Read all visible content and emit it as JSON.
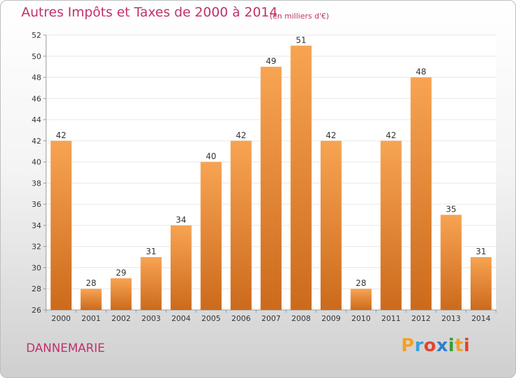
{
  "title": "Autres Impôts et Taxes de 2000 à 2014",
  "subtitle": "(en milliers d'€)",
  "commune": "DANNEMARIE",
  "logo": {
    "letters": [
      "P",
      "r",
      "o",
      "x",
      "i",
      "t",
      "i"
    ],
    "colors": [
      "#f2a02a",
      "#3aa0d8",
      "#e0452e",
      "#2b7fd0",
      "#3a9a3a",
      "#f2a02a",
      "#e0452e"
    ]
  },
  "colors": {
    "bar_top": "#f7a452",
    "bar_bottom": "#cc6a1c",
    "title": "#c0306a",
    "grid": "#e6e6e6",
    "axis": "#999999"
  },
  "chart_data": {
    "type": "bar",
    "categories": [
      "2000",
      "2001",
      "2002",
      "2003",
      "2004",
      "2005",
      "2006",
      "2007",
      "2008",
      "2009",
      "2010",
      "2011",
      "2012",
      "2013",
      "2014"
    ],
    "values": [
      42,
      28,
      29,
      31,
      34,
      40,
      42,
      49,
      51,
      42,
      28,
      42,
      48,
      35,
      31
    ],
    "ylim": [
      26,
      52
    ],
    "yticks": [
      26,
      28,
      30,
      32,
      34,
      36,
      38,
      40,
      42,
      44,
      46,
      48,
      50,
      52
    ],
    "grid": true,
    "legend": "none"
  }
}
